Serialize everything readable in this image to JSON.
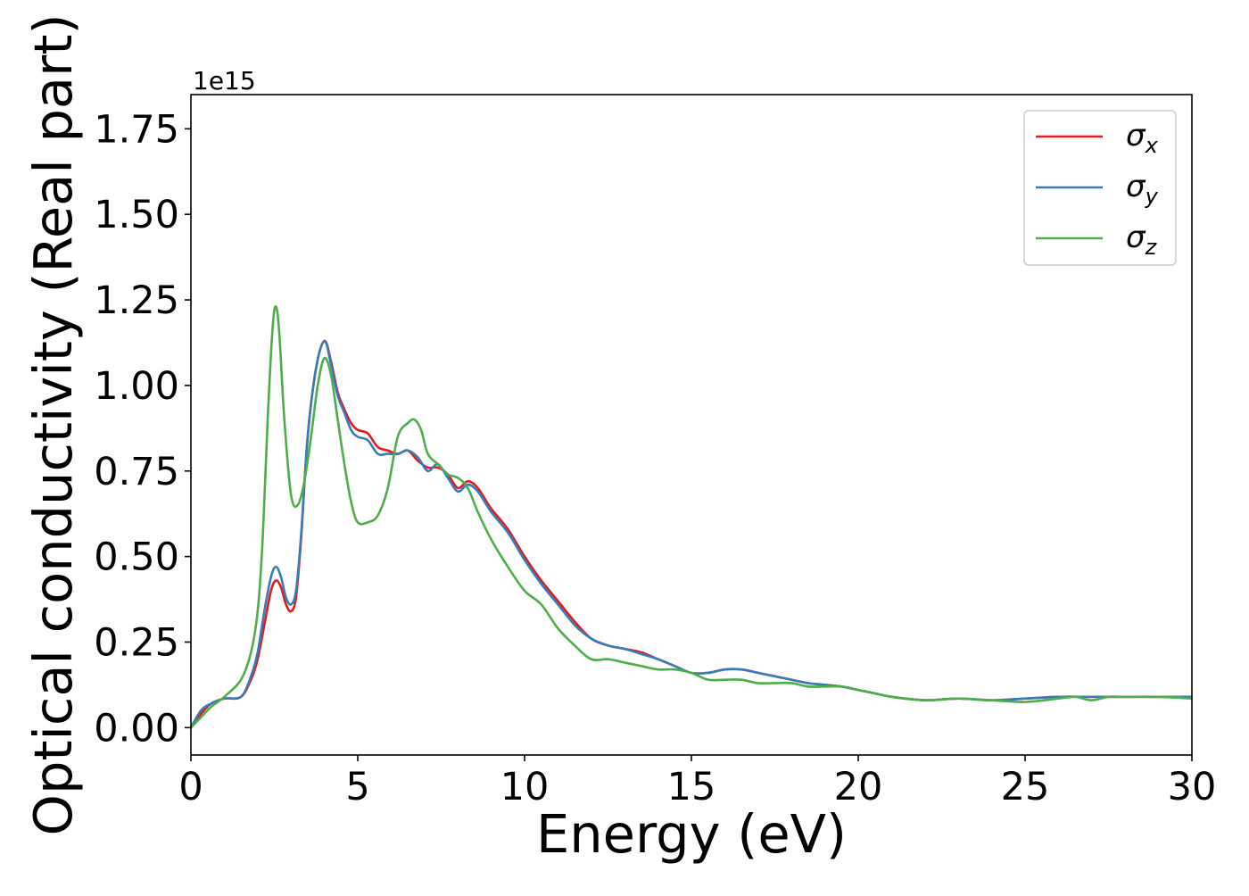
{
  "chart_data": {
    "type": "line",
    "title": "",
    "xlabel": "Energy (eV)",
    "ylabel": "Optical conductivity (Real part)",
    "y_offset_label": "1e15",
    "xlim": [
      0,
      30
    ],
    "ylim": [
      -0.08,
      1.85
    ],
    "x_ticks": [
      0,
      5,
      10,
      15,
      20,
      25,
      30
    ],
    "x_tick_labels": [
      "0",
      "5",
      "10",
      "15",
      "20",
      "25",
      "30"
    ],
    "y_ticks": [
      0.0,
      0.25,
      0.5,
      0.75,
      1.0,
      1.25,
      1.5,
      1.75
    ],
    "y_tick_labels": [
      "0.00",
      "0.25",
      "0.50",
      "0.75",
      "1.00",
      "1.25",
      "1.50",
      "1.75"
    ],
    "grid": false,
    "legend_position": "top-right",
    "series": [
      {
        "name": "σx",
        "symbol": "σ",
        "subscript": "x",
        "color": "#e41a1c",
        "x": [
          0,
          0.3,
          0.6,
          1.0,
          1.5,
          1.8,
          2.0,
          2.2,
          2.4,
          2.55,
          2.7,
          2.85,
          3.0,
          3.15,
          3.3,
          3.5,
          3.75,
          4.0,
          4.2,
          4.4,
          4.6,
          4.8,
          5.0,
          5.3,
          5.6,
          5.9,
          6.2,
          6.5,
          6.8,
          7.1,
          7.4,
          7.7,
          8.0,
          8.3,
          8.6,
          9.0,
          9.5,
          10.0,
          10.5,
          11.0,
          11.5,
          12.0,
          12.5,
          13.0,
          13.5,
          14.0,
          14.5,
          15.0,
          15.5,
          16.0,
          16.5,
          17.0,
          17.5,
          18.0,
          18.5,
          19.0,
          19.5,
          20.0,
          20.5,
          21.0,
          22.0,
          23.0,
          24.0,
          25.0,
          26.0,
          27.0,
          28.0,
          29.0,
          30.0
        ],
        "y": [
          0.0,
          0.04,
          0.07,
          0.085,
          0.09,
          0.14,
          0.2,
          0.3,
          0.4,
          0.43,
          0.41,
          0.36,
          0.34,
          0.38,
          0.55,
          0.85,
          1.05,
          1.13,
          1.07,
          0.98,
          0.93,
          0.89,
          0.87,
          0.86,
          0.82,
          0.81,
          0.8,
          0.81,
          0.78,
          0.76,
          0.76,
          0.74,
          0.7,
          0.72,
          0.7,
          0.64,
          0.58,
          0.5,
          0.43,
          0.37,
          0.31,
          0.26,
          0.24,
          0.23,
          0.22,
          0.2,
          0.18,
          0.16,
          0.16,
          0.17,
          0.17,
          0.16,
          0.15,
          0.14,
          0.13,
          0.125,
          0.12,
          0.11,
          0.1,
          0.09,
          0.08,
          0.085,
          0.08,
          0.085,
          0.09,
          0.09,
          0.09,
          0.09,
          0.09
        ]
      },
      {
        "name": "σy",
        "symbol": "σ",
        "subscript": "y",
        "color": "#377eb8",
        "x": [
          0,
          0.3,
          0.6,
          1.0,
          1.5,
          1.8,
          2.0,
          2.2,
          2.4,
          2.55,
          2.7,
          2.85,
          3.0,
          3.15,
          3.3,
          3.5,
          3.75,
          4.0,
          4.2,
          4.4,
          4.6,
          4.8,
          5.0,
          5.3,
          5.6,
          5.9,
          6.2,
          6.5,
          6.8,
          7.1,
          7.4,
          7.7,
          8.0,
          8.3,
          8.6,
          9.0,
          9.5,
          10.0,
          10.5,
          11.0,
          11.5,
          12.0,
          12.5,
          13.0,
          13.5,
          14.0,
          14.5,
          15.0,
          15.5,
          16.0,
          16.5,
          17.0,
          17.5,
          18.0,
          18.5,
          19.0,
          19.5,
          20.0,
          20.5,
          21.0,
          22.0,
          23.0,
          24.0,
          25.0,
          26.0,
          27.0,
          28.0,
          29.0,
          30.0
        ],
        "y": [
          0.0,
          0.05,
          0.07,
          0.085,
          0.09,
          0.15,
          0.22,
          0.34,
          0.44,
          0.47,
          0.44,
          0.38,
          0.36,
          0.4,
          0.56,
          0.85,
          1.05,
          1.13,
          1.06,
          0.97,
          0.92,
          0.87,
          0.85,
          0.84,
          0.8,
          0.8,
          0.8,
          0.81,
          0.79,
          0.75,
          0.77,
          0.73,
          0.69,
          0.71,
          0.69,
          0.63,
          0.57,
          0.49,
          0.42,
          0.36,
          0.3,
          0.26,
          0.24,
          0.23,
          0.215,
          0.2,
          0.18,
          0.16,
          0.16,
          0.17,
          0.17,
          0.16,
          0.15,
          0.14,
          0.13,
          0.125,
          0.12,
          0.11,
          0.1,
          0.09,
          0.08,
          0.085,
          0.08,
          0.085,
          0.09,
          0.09,
          0.09,
          0.09,
          0.09
        ]
      },
      {
        "name": "σz",
        "symbol": "σ",
        "subscript": "z",
        "color": "#4daf4a",
        "x": [
          0,
          0.3,
          0.6,
          1.0,
          1.5,
          1.8,
          2.0,
          2.15,
          2.3,
          2.45,
          2.55,
          2.65,
          2.8,
          3.0,
          3.2,
          3.4,
          3.6,
          3.8,
          4.0,
          4.2,
          4.4,
          4.6,
          4.8,
          5.0,
          5.3,
          5.6,
          5.9,
          6.2,
          6.5,
          6.7,
          6.9,
          7.1,
          7.4,
          7.7,
          8.0,
          8.3,
          8.6,
          9.0,
          9.5,
          10.0,
          10.5,
          11.0,
          11.5,
          12.0,
          12.5,
          13.0,
          13.5,
          14.0,
          14.5,
          15.0,
          15.5,
          16.0,
          16.5,
          17.0,
          17.5,
          18.0,
          18.5,
          19.0,
          19.5,
          20.0,
          20.5,
          21.0,
          22.0,
          23.0,
          24.0,
          25.0,
          26.0,
          26.5,
          27.0,
          27.5,
          28.0,
          29.0,
          30.0
        ],
        "y": [
          0.0,
          0.03,
          0.06,
          0.09,
          0.14,
          0.22,
          0.34,
          0.55,
          0.9,
          1.17,
          1.23,
          1.15,
          0.9,
          0.68,
          0.65,
          0.72,
          0.85,
          1.0,
          1.08,
          1.03,
          0.9,
          0.77,
          0.66,
          0.6,
          0.6,
          0.62,
          0.7,
          0.85,
          0.89,
          0.9,
          0.87,
          0.8,
          0.77,
          0.74,
          0.73,
          0.7,
          0.63,
          0.55,
          0.47,
          0.4,
          0.36,
          0.29,
          0.24,
          0.2,
          0.2,
          0.19,
          0.18,
          0.17,
          0.17,
          0.16,
          0.14,
          0.14,
          0.14,
          0.13,
          0.13,
          0.13,
          0.12,
          0.12,
          0.12,
          0.11,
          0.1,
          0.09,
          0.08,
          0.085,
          0.08,
          0.075,
          0.085,
          0.09,
          0.08,
          0.09,
          0.09,
          0.09,
          0.085
        ]
      }
    ]
  }
}
